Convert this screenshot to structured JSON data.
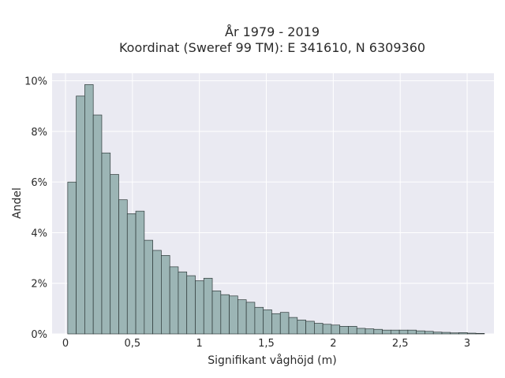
{
  "chart_data": {
    "type": "bar",
    "title_line1": "År 1979 - 2019",
    "title_line2": "Koordinat (Sweref 99 TM): E 341610, N 6309360",
    "xlabel": "Signifikant våghöjd (m)",
    "ylabel": "Andel",
    "xlim": [
      -0.1,
      3.2
    ],
    "ylim": [
      0,
      10.3
    ],
    "grid": true,
    "x_ticks": [
      {
        "value": 0,
        "label": "0"
      },
      {
        "value": 0.5,
        "label": "0,5"
      },
      {
        "value": 1,
        "label": "1"
      },
      {
        "value": 1.5,
        "label": "1,5"
      },
      {
        "value": 2,
        "label": "2"
      },
      {
        "value": 2.5,
        "label": "2,5"
      },
      {
        "value": 3,
        "label": "3"
      }
    ],
    "y_ticks": [
      {
        "value": 0,
        "label": "0%"
      },
      {
        "value": 2,
        "label": "2%"
      },
      {
        "value": 4,
        "label": "4%"
      },
      {
        "value": 6,
        "label": "6%"
      },
      {
        "value": 8,
        "label": "8%"
      },
      {
        "value": 10,
        "label": "10%"
      }
    ],
    "bin_start": 0.017,
    "bin_width": 0.0635,
    "values": [
      6.0,
      9.4,
      9.85,
      8.65,
      7.15,
      6.3,
      5.3,
      4.75,
      4.85,
      3.7,
      3.3,
      3.1,
      2.65,
      2.45,
      2.3,
      2.1,
      2.2,
      1.7,
      1.55,
      1.5,
      1.35,
      1.25,
      1.05,
      0.95,
      0.8,
      0.85,
      0.65,
      0.55,
      0.5,
      0.42,
      0.38,
      0.35,
      0.3,
      0.3,
      0.22,
      0.2,
      0.18,
      0.15,
      0.15,
      0.15,
      0.15,
      0.12,
      0.1,
      0.07,
      0.06,
      0.04,
      0.05,
      0.03,
      0.02
    ],
    "colors": {
      "background": "#eaeaf2",
      "grid": "#ffffff",
      "bar_fill": "#9cb5b5",
      "bar_stroke": "#2f3a3a"
    }
  }
}
